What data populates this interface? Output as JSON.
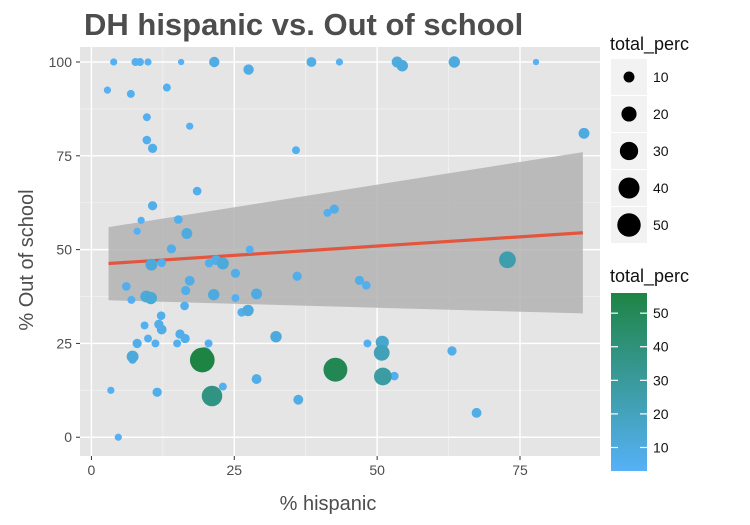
{
  "chart_data": {
    "type": "scatter",
    "title": "DH hispanic vs. Out of school",
    "xlabel": "% hispanic",
    "ylabel": "% Out of school",
    "xlim": [
      -2,
      89
    ],
    "ylim": [
      -5,
      104
    ],
    "x_ticks": [
      0,
      25,
      50,
      75
    ],
    "y_ticks": [
      0,
      25,
      50,
      75,
      100
    ],
    "grid": true,
    "panel_background": "#e5e5e5",
    "size_legend": {
      "title": "total_perc",
      "values": [
        10,
        20,
        30,
        40,
        50
      ],
      "placement": "right-top"
    },
    "color_legend": {
      "title": "total_perc",
      "values": [
        10,
        20,
        30,
        40,
        50
      ],
      "range": [
        3,
        56
      ],
      "low_color": "#56b1f7",
      "high_color": "#1e8444",
      "placement": "right-bottom"
    },
    "trend_line": {
      "color": "#e2563e",
      "x": [
        3,
        86
      ],
      "y": [
        46.3,
        54.5
      ],
      "ci_lower": [
        36.5,
        33
      ],
      "ci_upper": [
        56,
        76
      ],
      "ribbon_color": "#b3b3b3"
    },
    "points": [
      {
        "x": 3.9,
        "y": 100,
        "v": 4
      },
      {
        "x": 7.7,
        "y": 100,
        "v": 5
      },
      {
        "x": 8.5,
        "y": 100,
        "v": 5
      },
      {
        "x": 9.9,
        "y": 100,
        "v": 4
      },
      {
        "x": 15.7,
        "y": 100,
        "v": 3
      },
      {
        "x": 21.5,
        "y": 100,
        "v": 9
      },
      {
        "x": 27.5,
        "y": 98,
        "v": 9
      },
      {
        "x": 38.5,
        "y": 100,
        "v": 8
      },
      {
        "x": 43.4,
        "y": 100,
        "v": 4
      },
      {
        "x": 53.5,
        "y": 100,
        "v": 10
      },
      {
        "x": 54.4,
        "y": 99,
        "v": 11
      },
      {
        "x": 63.5,
        "y": 100,
        "v": 11
      },
      {
        "x": 77.8,
        "y": 100,
        "v": 3
      },
      {
        "x": 2.8,
        "y": 92.5,
        "v": 4
      },
      {
        "x": 6.9,
        "y": 91.5,
        "v": 5
      },
      {
        "x": 13.2,
        "y": 93.2,
        "v": 5
      },
      {
        "x": 9.7,
        "y": 85.3,
        "v": 5
      },
      {
        "x": 17.2,
        "y": 82.9,
        "v": 4
      },
      {
        "x": 9.7,
        "y": 79.2,
        "v": 6
      },
      {
        "x": 10.7,
        "y": 77,
        "v": 7
      },
      {
        "x": 35.8,
        "y": 76.5,
        "v": 5
      },
      {
        "x": 86.2,
        "y": 81,
        "v": 10
      },
      {
        "x": 18.5,
        "y": 65.6,
        "v": 6
      },
      {
        "x": 10.7,
        "y": 61.7,
        "v": 7
      },
      {
        "x": 41.3,
        "y": 59.8,
        "v": 5
      },
      {
        "x": 42.5,
        "y": 60.8,
        "v": 7
      },
      {
        "x": 8.7,
        "y": 57.8,
        "v": 4
      },
      {
        "x": 15.2,
        "y": 58,
        "v": 6
      },
      {
        "x": 8,
        "y": 54.9,
        "v": 4
      },
      {
        "x": 16.7,
        "y": 54.3,
        "v": 10
      },
      {
        "x": 10.5,
        "y": 46,
        "v": 12
      },
      {
        "x": 12.3,
        "y": 46.5,
        "v": 6
      },
      {
        "x": 14,
        "y": 50.2,
        "v": 7
      },
      {
        "x": 20.6,
        "y": 46.4,
        "v": 6
      },
      {
        "x": 21.8,
        "y": 47.2,
        "v": 8
      },
      {
        "x": 23,
        "y": 46.3,
        "v": 12
      },
      {
        "x": 27.7,
        "y": 50,
        "v": 5
      },
      {
        "x": 25.2,
        "y": 43.7,
        "v": 7
      },
      {
        "x": 36,
        "y": 42.9,
        "v": 7
      },
      {
        "x": 46.9,
        "y": 41.8,
        "v": 7
      },
      {
        "x": 48.1,
        "y": 40.5,
        "v": 6
      },
      {
        "x": 6.1,
        "y": 40.2,
        "v": 6
      },
      {
        "x": 9.6,
        "y": 37.5,
        "v": 12
      },
      {
        "x": 10.4,
        "y": 37.1,
        "v": 13
      },
      {
        "x": 7,
        "y": 36.6,
        "v": 5
      },
      {
        "x": 16.5,
        "y": 39.1,
        "v": 7
      },
      {
        "x": 17.2,
        "y": 41.7,
        "v": 8
      },
      {
        "x": 21.4,
        "y": 38,
        "v": 11
      },
      {
        "x": 25.2,
        "y": 37.1,
        "v": 5
      },
      {
        "x": 28.9,
        "y": 38.2,
        "v": 10
      },
      {
        "x": 16.3,
        "y": 35,
        "v": 6
      },
      {
        "x": 26.3,
        "y": 33.3,
        "v": 6
      },
      {
        "x": 27.4,
        "y": 33.8,
        "v": 11
      },
      {
        "x": 12.2,
        "y": 32.4,
        "v": 6
      },
      {
        "x": 11.8,
        "y": 30.1,
        "v": 7
      },
      {
        "x": 9.3,
        "y": 29.8,
        "v": 5
      },
      {
        "x": 12.3,
        "y": 28.7,
        "v": 8
      },
      {
        "x": 15.5,
        "y": 27.5,
        "v": 7
      },
      {
        "x": 16.4,
        "y": 26.3,
        "v": 7
      },
      {
        "x": 9.9,
        "y": 26.3,
        "v": 5
      },
      {
        "x": 11.2,
        "y": 25,
        "v": 5
      },
      {
        "x": 8,
        "y": 25,
        "v": 7
      },
      {
        "x": 15,
        "y": 25,
        "v": 5
      },
      {
        "x": 20.5,
        "y": 25,
        "v": 5
      },
      {
        "x": 32.3,
        "y": 26.8,
        "v": 11
      },
      {
        "x": 48.3,
        "y": 25,
        "v": 5
      },
      {
        "x": 50.9,
        "y": 25.3,
        "v": 15
      },
      {
        "x": 7.2,
        "y": 21.5,
        "v": 12
      },
      {
        "x": 7.2,
        "y": 20.6,
        "v": 5
      },
      {
        "x": 19.4,
        "y": 20.6,
        "v": 56
      },
      {
        "x": 19.8,
        "y": 22.1,
        "v": 18
      },
      {
        "x": 50.8,
        "y": 22.5,
        "v": 22
      },
      {
        "x": 63.1,
        "y": 23,
        "v": 7
      },
      {
        "x": 42.7,
        "y": 18,
        "v": 52
      },
      {
        "x": 51,
        "y": 16.2,
        "v": 28
      },
      {
        "x": 53,
        "y": 16.3,
        "v": 6
      },
      {
        "x": 28.9,
        "y": 15.5,
        "v": 8
      },
      {
        "x": 23,
        "y": 13.5,
        "v": 5
      },
      {
        "x": 21.1,
        "y": 11,
        "v": 38
      },
      {
        "x": 36.2,
        "y": 10,
        "v": 8
      },
      {
        "x": 3.4,
        "y": 12.5,
        "v": 4
      },
      {
        "x": 11.5,
        "y": 12,
        "v": 7
      },
      {
        "x": 67.4,
        "y": 6.5,
        "v": 8
      },
      {
        "x": 4.7,
        "y": 0,
        "v": 4
      },
      {
        "x": 72.8,
        "y": 47.3,
        "v": 25
      }
    ]
  }
}
